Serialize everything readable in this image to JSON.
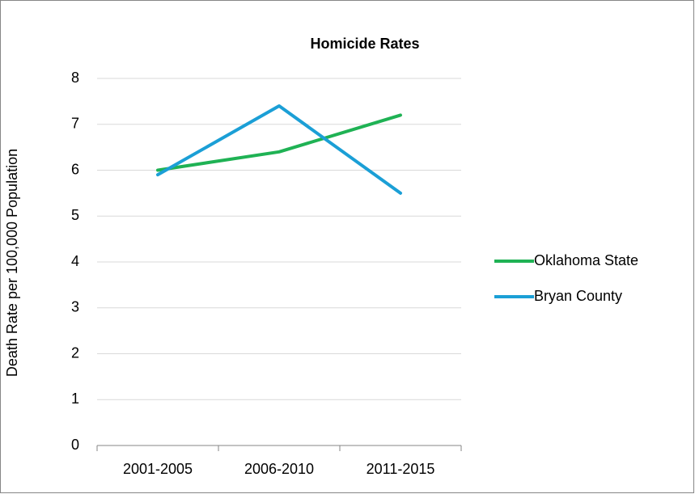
{
  "chart_data": {
    "type": "line",
    "title": "Homicide Rates",
    "y_label": "Death Rate per 100,000 Population",
    "categories": [
      "2001-2005",
      "2006-2010",
      "2011-2015"
    ],
    "series": [
      {
        "name": "Oklahoma State",
        "color": "#1fb254",
        "values": [
          6.0,
          6.4,
          7.2
        ]
      },
      {
        "name": "Bryan County",
        "color": "#1b9fd6",
        "values": [
          5.9,
          7.4,
          5.5
        ]
      }
    ],
    "ylim": [
      0,
      8
    ],
    "yticks": [
      0,
      1,
      2,
      3,
      4,
      5,
      6,
      7,
      8
    ],
    "grid": true,
    "legend": "right"
  }
}
